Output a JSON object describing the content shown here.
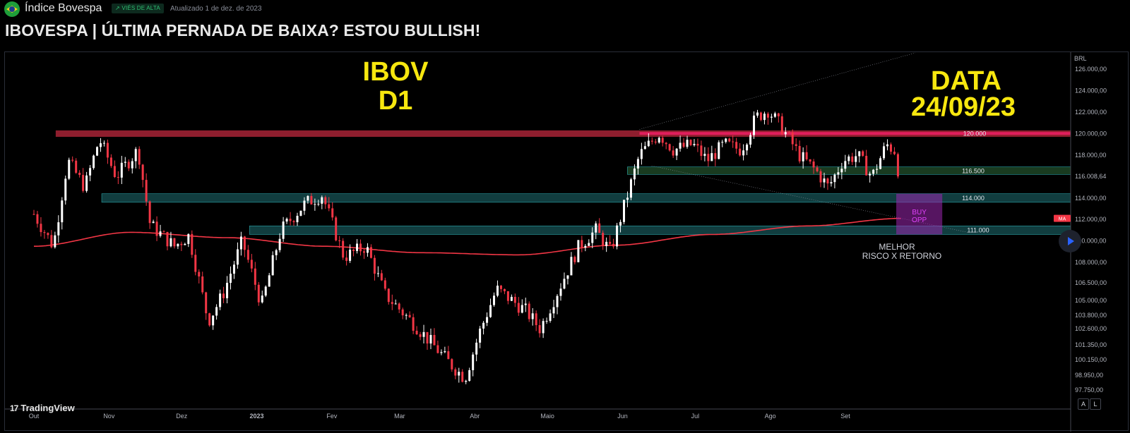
{
  "header": {
    "symbol_name": "Índice Bovespa",
    "bias_badge": "↗ VIÉS DE ALTA",
    "updated": "Atualizado 1 de dez. de 2023",
    "idea_title": "IBOVESPA | ÚLTIMA PERNADA DE BAIXA? ESTOU BULLISH!"
  },
  "watermark": "TradingView",
  "buttons": {
    "auto": "A",
    "log": "L"
  },
  "icons": {
    "flag": "brazil-flag-icon",
    "logo": "tradingview-logo-icon",
    "play": "play-icon"
  },
  "colors": {
    "background": "#000000",
    "bull_candle": "#ffffff",
    "bear_candle": "#f23645",
    "moving_average": "#f23645",
    "resistance_zone": "#b2263a",
    "support_zone": "#1f6f72",
    "green_zone": "#2e6b3a",
    "text_annotation": "#f7e70f",
    "buy_box": "#9c27b0"
  },
  "chart_data": {
    "type": "candlestick",
    "currency": "BRL",
    "timeframe": "D1",
    "price_axis_ticks": [
      {
        "value": 126000,
        "label": "126.000,00"
      },
      {
        "value": 124000,
        "label": "124.000,00"
      },
      {
        "value": 122000,
        "label": "122.000,00"
      },
      {
        "value": 120000,
        "label": "120.000,00"
      },
      {
        "value": 118000,
        "label": "118.000,00"
      },
      {
        "value": 116008.64,
        "label": "116.008,64"
      },
      {
        "value": 114000,
        "label": "114.000,00"
      },
      {
        "value": 112000,
        "label": "112.000,00"
      },
      {
        "value": 110000,
        "label": "110.000,00"
      },
      {
        "value": 108000,
        "label": "108.000,00"
      },
      {
        "value": 106500,
        "label": "106.500,00"
      },
      {
        "value": 105000,
        "label": "105.000,00"
      },
      {
        "value": 103800,
        "label": "103.800,00"
      },
      {
        "value": 102600,
        "label": "102.600,00"
      },
      {
        "value": 101350,
        "label": "101.350,00"
      },
      {
        "value": 100150,
        "label": "100.150,00"
      },
      {
        "value": 98950,
        "label": "98.950,00"
      },
      {
        "value": 97750,
        "label": "97.750,00"
      }
    ],
    "time_axis_labels": [
      "Out",
      "Nov",
      "Dez",
      "2023",
      "Fev",
      "Mar",
      "Abr",
      "Maio",
      "Jun",
      "Jul",
      "Ago",
      "Set"
    ],
    "time_axis_days": [
      0,
      31,
      61,
      92,
      123,
      151,
      182,
      212,
      243,
      273,
      304,
      335
    ],
    "last_day": 358,
    "series_anchors": [
      {
        "d": 0,
        "p": 112500
      },
      {
        "d": 8,
        "p": 109500
      },
      {
        "d": 14,
        "p": 117500
      },
      {
        "d": 21,
        "p": 115000
      },
      {
        "d": 27,
        "p": 119500
      },
      {
        "d": 34,
        "p": 116000
      },
      {
        "d": 43,
        "p": 118500
      },
      {
        "d": 48,
        "p": 111500
      },
      {
        "d": 58,
        "p": 109500
      },
      {
        "d": 64,
        "p": 110500
      },
      {
        "d": 72,
        "p": 102500
      },
      {
        "d": 78,
        "p": 105000
      },
      {
        "d": 86,
        "p": 110000
      },
      {
        "d": 94,
        "p": 104000
      },
      {
        "d": 102,
        "p": 111000
      },
      {
        "d": 112,
        "p": 113500
      },
      {
        "d": 119,
        "p": 114300
      },
      {
        "d": 128,
        "p": 108500
      },
      {
        "d": 137,
        "p": 109500
      },
      {
        "d": 145,
        "p": 105000
      },
      {
        "d": 158,
        "p": 102000
      },
      {
        "d": 172,
        "p": 98500
      },
      {
        "d": 178,
        "p": 97200
      },
      {
        "d": 184,
        "p": 101500
      },
      {
        "d": 191,
        "p": 105500
      },
      {
        "d": 203,
        "p": 103500
      },
      {
        "d": 209,
        "p": 101800
      },
      {
        "d": 216,
        "p": 105200
      },
      {
        "d": 225,
        "p": 109500
      },
      {
        "d": 232,
        "p": 111000
      },
      {
        "d": 238,
        "p": 109000
      },
      {
        "d": 244,
        "p": 113500
      },
      {
        "d": 250,
        "p": 118000
      },
      {
        "d": 258,
        "p": 120000
      },
      {
        "d": 264,
        "p": 118500
      },
      {
        "d": 272,
        "p": 119000
      },
      {
        "d": 278,
        "p": 117500
      },
      {
        "d": 285,
        "p": 119000
      },
      {
        "d": 292,
        "p": 118500
      },
      {
        "d": 298,
        "p": 121500
      },
      {
        "d": 303,
        "p": 122200
      },
      {
        "d": 309,
        "p": 120500
      },
      {
        "d": 316,
        "p": 118000
      },
      {
        "d": 323,
        "p": 116500
      },
      {
        "d": 328,
        "p": 115000
      },
      {
        "d": 334,
        "p": 117500
      },
      {
        "d": 340,
        "p": 118000
      },
      {
        "d": 346,
        "p": 116000
      },
      {
        "d": 352,
        "p": 119000
      },
      {
        "d": 356,
        "p": 118300
      },
      {
        "d": 358,
        "p": 116008.64
      }
    ],
    "moving_average": [
      {
        "d": 0,
        "p": 109500
      },
      {
        "d": 40,
        "p": 110800
      },
      {
        "d": 80,
        "p": 110300
      },
      {
        "d": 120,
        "p": 109500
      },
      {
        "d": 160,
        "p": 108900
      },
      {
        "d": 200,
        "p": 108700
      },
      {
        "d": 240,
        "p": 109600
      },
      {
        "d": 280,
        "p": 110600
      },
      {
        "d": 320,
        "p": 111400
      },
      {
        "d": 358,
        "p": 112100
      }
    ],
    "zones": [
      {
        "name": "resistance",
        "from": 119700,
        "to": 120300,
        "start_day": 9,
        "end_day": 358
      },
      {
        "name": "green",
        "from": 116200,
        "to": 116900,
        "start_day": 245,
        "end_day": 358
      },
      {
        "name": "support-114",
        "from": 113600,
        "to": 114400,
        "start_day": 28,
        "end_day": 358
      },
      {
        "name": "support-111",
        "from": 110600,
        "to": 111400,
        "start_day": 89,
        "end_day": 358
      }
    ],
    "levels": [
      {
        "value": 120000,
        "label": "120.000"
      },
      {
        "value": 116500,
        "label": "116.500"
      },
      {
        "value": 114000,
        "label": "114.000"
      },
      {
        "value": 111000,
        "label": "111.000"
      }
    ],
    "ma_label": "MA",
    "annotations": {
      "ibov_line1": "IBOV",
      "ibov_line2": "D1",
      "date_line1": "DATA",
      "date_line2": "24/09/23",
      "buy_line1": "BUY",
      "buy_line2": "OPP",
      "note_line1": "MELHOR",
      "note_line2": "RISCO X RETORNO"
    },
    "buy_box": {
      "start_day": 356,
      "end_day": 375,
      "from": 110600,
      "to": 114400
    }
  }
}
